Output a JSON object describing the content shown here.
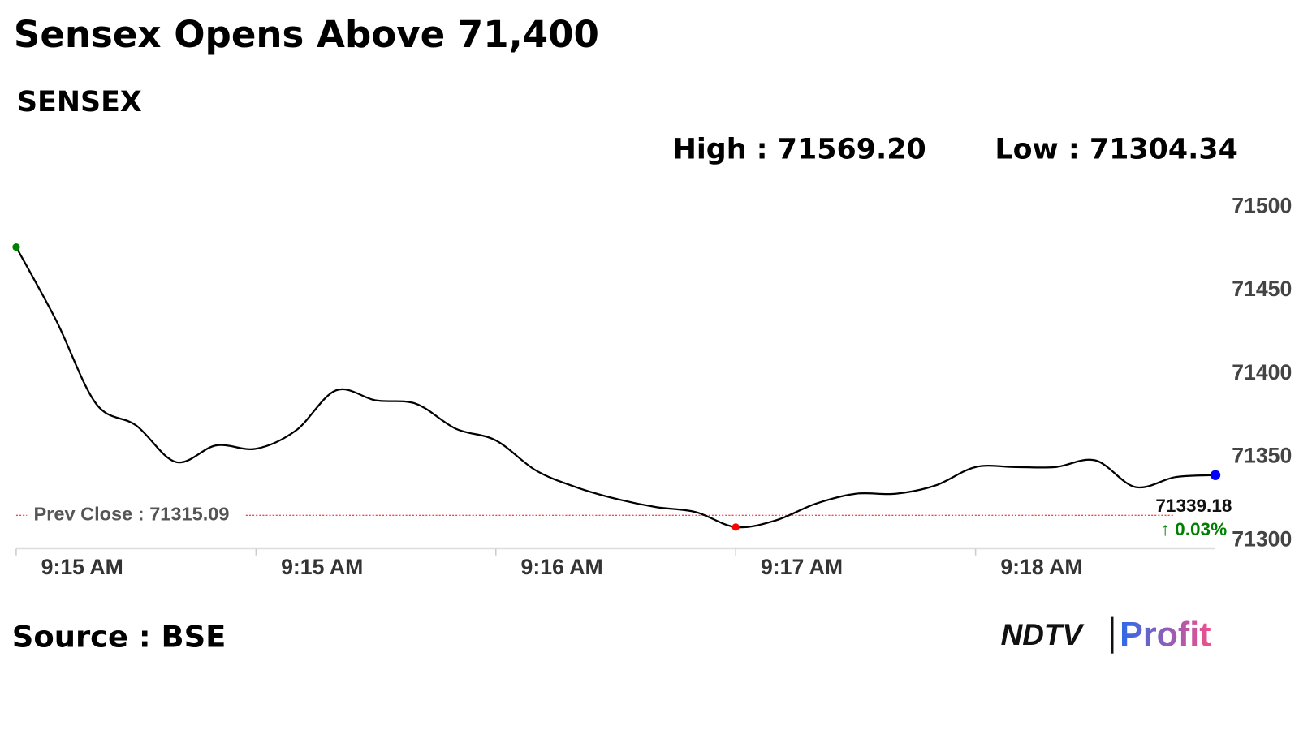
{
  "chart_data": {
    "type": "line",
    "title": "Sensex Opens Above 71,400",
    "subtitle": "SENSEX",
    "high_label": "High : 71569.20",
    "low_label": "Low : 71304.34",
    "categories": [
      "9:15 AM",
      null,
      null,
      null,
      null,
      null,
      "9:15 AM",
      null,
      null,
      null,
      null,
      null,
      "9:16 AM",
      null,
      null,
      null,
      null,
      null,
      "9:17 AM",
      null,
      null,
      null,
      null,
      null,
      "9:18 AM",
      null,
      null,
      null,
      null,
      null,
      null
    ],
    "series": [
      {
        "name": "SENSEX",
        "color": "#000000",
        "values": [
          71476,
          71432,
          71382,
          71369,
          71347,
          71357,
          71355,
          71366,
          71390,
          71384,
          71382,
          71367,
          71360,
          71342,
          71332,
          71325,
          71320,
          71317,
          71308,
          71312,
          71322,
          71328,
          71328,
          71333,
          71344,
          71344,
          71344,
          71348,
          71332,
          71338,
          71339.18
        ]
      }
    ],
    "start_color": "#008000",
    "low_color": "#ff0000",
    "end_color": "#0000ff",
    "ylim": [
      71295,
      71512
    ],
    "yticks": [
      71300,
      71350,
      71400,
      71450,
      71500
    ],
    "prev_close": {
      "value": 71315.09,
      "label": "Prev Close : 71315.09",
      "color": "#ff0000"
    },
    "last_label": "71339.18",
    "change_label": "↑ 0.03%",
    "change_color": "#008000",
    "source": "Source : BSE",
    "brand": "NDTV",
    "brand_sub": "Profit"
  }
}
